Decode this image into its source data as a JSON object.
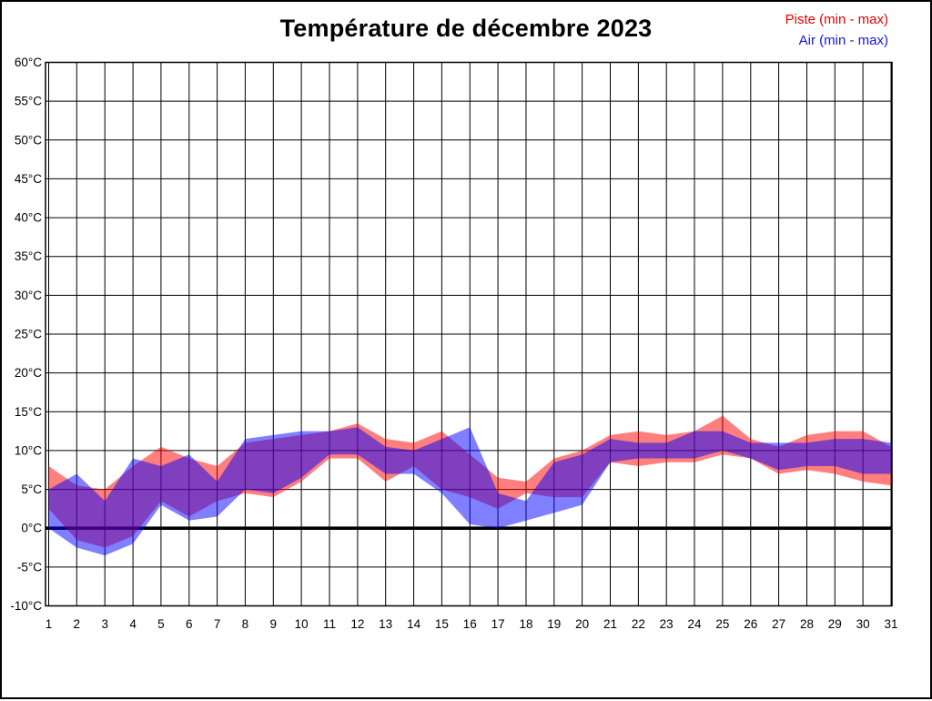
{
  "title": "Température de décembre 2023",
  "legend": {
    "piste": {
      "label": "Piste (min - max)",
      "color": "#e80000"
    },
    "air": {
      "label": "Air (min - max)",
      "color": "#1414e8"
    }
  },
  "chart_data": {
    "type": "area",
    "subtype": "min-max bands",
    "title": "Température de décembre 2023",
    "xlabel": "",
    "ylabel": "",
    "x": [
      1,
      2,
      3,
      4,
      5,
      6,
      7,
      8,
      9,
      10,
      11,
      12,
      13,
      14,
      15,
      16,
      17,
      18,
      19,
      20,
      21,
      22,
      23,
      24,
      25,
      26,
      27,
      28,
      29,
      30,
      31
    ],
    "x_labels": [
      "1",
      "2",
      "3",
      "4",
      "5",
      "6",
      "7",
      "8",
      "9",
      "10",
      "11",
      "12",
      "13",
      "14",
      "15",
      "16",
      "17",
      "18",
      "19",
      "20",
      "21",
      "22",
      "23",
      "24",
      "25",
      "26",
      "27",
      "28",
      "29",
      "30",
      "31"
    ],
    "ylim": [
      -10,
      60
    ],
    "y_tick_values": [
      60,
      55,
      50,
      45,
      40,
      35,
      30,
      25,
      20,
      15,
      10,
      5,
      0,
      -5,
      -10
    ],
    "y_tick_labels": [
      "60°C",
      "55°C",
      "50°C",
      "45°C",
      "40°C",
      "35°C",
      "30°C",
      "25°C",
      "20°C",
      "15°C",
      "10°C",
      "5°C",
      "0°C",
      "-5°C",
      "-10°C"
    ],
    "grid": true,
    "zero_line": true,
    "legend_position": "top-right",
    "series": [
      {
        "name": "Piste (min - max)",
        "fill_color": "#ff0000",
        "fill_opacity": 0.5,
        "min": [
          2.5,
          -1.5,
          -2.5,
          -1,
          3.5,
          1.5,
          3.5,
          4.5,
          4,
          6,
          9,
          9,
          6,
          8,
          5,
          4,
          2.5,
          4.5,
          4,
          4,
          8.5,
          8,
          8.5,
          8.5,
          9.5,
          9,
          7,
          7.5,
          7,
          6,
          5.5
        ],
        "max": [
          8,
          5.5,
          5,
          8,
          10.5,
          9,
          8,
          11,
          11.5,
          12,
          12.5,
          13.5,
          11.5,
          11,
          12.5,
          9.5,
          6.5,
          6,
          9,
          10,
          12,
          12.5,
          12,
          12.5,
          14.5,
          11.5,
          10.5,
          12,
          12.5,
          12.5,
          10.5
        ]
      },
      {
        "name": "Air (min - max)",
        "fill_color": "#0000ff",
        "fill_opacity": 0.5,
        "min": [
          0,
          -2.5,
          -3.5,
          -2,
          3,
          1,
          1.5,
          5,
          4.5,
          6.5,
          9.5,
          9.5,
          7,
          7,
          4.5,
          0.5,
          0,
          1,
          2,
          3,
          8.5,
          9,
          9,
          9,
          10,
          9,
          7.5,
          8,
          8,
          7,
          7
        ],
        "max": [
          5,
          7,
          3.5,
          9,
          8,
          9.5,
          6,
          11.5,
          12,
          12.5,
          12.5,
          13,
          10.5,
          10,
          11.5,
          13,
          4.5,
          3.5,
          8.5,
          9.5,
          11.5,
          11,
          11,
          12.5,
          12.5,
          11,
          11,
          11,
          11.5,
          11.5,
          11
        ]
      }
    ]
  }
}
